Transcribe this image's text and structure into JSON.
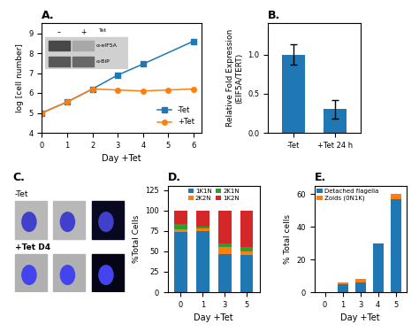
{
  "chart_data": [
    {
      "type": "line",
      "title": "A.",
      "xlabel": "Day +Tet",
      "ylabel": "log [cell number]",
      "series": [
        {
          "name": "-Tet",
          "x": [
            0,
            1,
            2,
            3,
            4,
            6
          ],
          "values": [
            5.0,
            5.55,
            6.2,
            6.9,
            7.45,
            8.6
          ],
          "marker": "square"
        },
        {
          "name": "+Tet",
          "x": [
            0,
            1,
            2,
            3,
            4,
            5,
            6
          ],
          "values": [
            5.0,
            5.55,
            6.2,
            6.15,
            6.1,
            6.15,
            6.2
          ],
          "marker": "circle"
        }
      ],
      "xlim": [
        0,
        6.3
      ],
      "ylim": [
        4,
        9.5
      ],
      "xticks": [
        0,
        1,
        2,
        3,
        4,
        5,
        6
      ],
      "yticks": [
        4,
        5,
        6,
        7,
        8,
        9
      ],
      "legend": "lower right",
      "annotations": [
        "–",
        "+",
        "Tet",
        "α-eIF5A",
        "α-BiP"
      ]
    },
    {
      "type": "bar",
      "title": "B.",
      "ylabel": "Relative Fold Expression\n(EIF5A/TERT)",
      "categories": [
        "-Tet",
        "+Tet 24 h"
      ],
      "values": [
        1.0,
        0.3
      ],
      "errors": [
        0.13,
        0.12
      ],
      "ylim": [
        0,
        1.4
      ],
      "yticks": [
        {
          "value": 0,
          "label": "0.0"
        },
        {
          "value": 0.5,
          "label": "0.5"
        },
        {
          "value": 1,
          "label": "1.0"
        }
      ]
    },
    {
      "type": "image",
      "title": "C.",
      "annotations": [
        "-Tet",
        "+Tet D4"
      ]
    },
    {
      "type": "bar",
      "stacked": true,
      "title": "D.",
      "xlabel": "Day +Tet",
      "ylabel": "%Total Cells",
      "categories": [
        "0",
        "1",
        "3",
        "5"
      ],
      "series": [
        {
          "name": "1K1N",
          "values": [
            74,
            75,
            47,
            46
          ]
        },
        {
          "name": "2K2N",
          "values": [
            3,
            3,
            8,
            4
          ]
        },
        {
          "name": "2K1N",
          "values": [
            6,
            2,
            5,
            5
          ]
        },
        {
          "name": "1K2N",
          "values": [
            17,
            20,
            40,
            45
          ]
        }
      ],
      "ylim": [
        0,
        130
      ],
      "yticks": [
        0,
        25,
        50,
        75,
        100,
        125
      ],
      "legend": "upper center"
    },
    {
      "type": "bar",
      "stacked": true,
      "title": "E.",
      "xlabel": "Day +Tet",
      "ylabel": "% Total cells",
      "categories": [
        "0",
        "1",
        "3",
        "4",
        "5"
      ],
      "series": [
        {
          "name": "Detached flagella",
          "values": [
            0,
            5,
            6,
            30,
            57
          ]
        },
        {
          "name": "Zoids (0N1K)",
          "values": [
            0,
            1,
            2,
            0,
            3
          ]
        }
      ],
      "ylim": [
        0,
        65
      ],
      "yticks": [
        0,
        20,
        40,
        60
      ],
      "legend": "upper left"
    }
  ]
}
